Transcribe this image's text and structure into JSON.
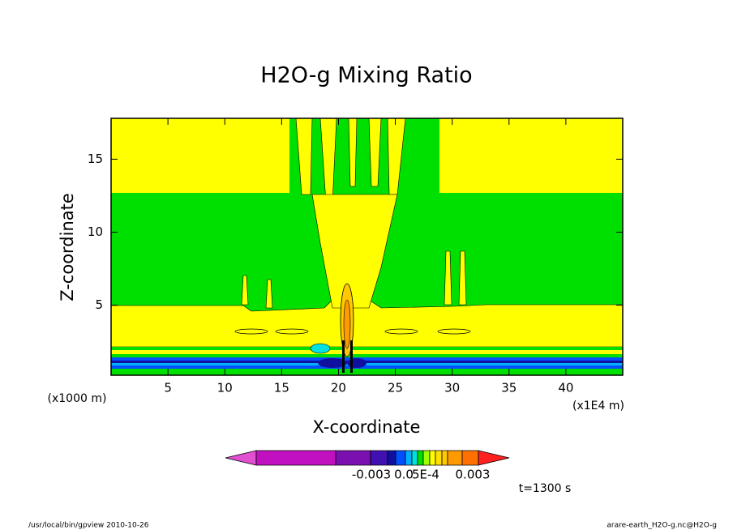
{
  "chart_data": {
    "type": "contour",
    "title": "H2O-g Mixing Ratio",
    "x_label": "X-coordinate",
    "y_label": "Z-coordinate",
    "x_units": "(x1E4 m)",
    "y_units": "(x1000 m)",
    "xlim": [
      0,
      45
    ],
    "ylim": [
      0.2,
      17.8
    ],
    "xticks": [
      5,
      10,
      15,
      20,
      25,
      30,
      35,
      40
    ],
    "yticks": [
      5,
      10,
      15
    ],
    "colorbar": {
      "colors": [
        "#e050d0",
        "#c010c0",
        "#7a10b0",
        "#4010b0",
        "#1010a0",
        "#0050ff",
        "#00b0ff",
        "#00e0e0",
        "#00e000",
        "#a0ff00",
        "#ffff00",
        "#ffe000",
        "#ffc800",
        "#ff9a00",
        "#ff7000",
        "#ff2020"
      ],
      "ticks": [
        -0.003,
        {
          "value": 0,
          "label": "0.0"
        },
        {
          "value": 0.0005,
          "label": "5E-4"
        },
        0.003
      ]
    },
    "time_label": "t=1300 s"
  },
  "footer": {
    "left": "/usr/local/bin/gpview  2010-10-26",
    "right": "arare-earth_H2O-g.nc@H2O-g"
  }
}
